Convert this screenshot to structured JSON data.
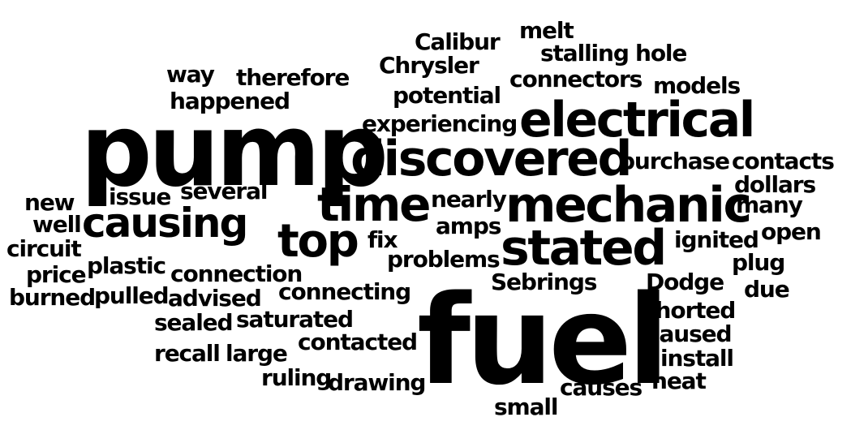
{
  "words": [
    "fuel",
    "pump",
    "electrical",
    "discovered",
    "mechanic",
    "stated",
    "time",
    "causing",
    "top",
    "purchase",
    "contacts",
    "Calibur",
    "Chrysler",
    "melt",
    "stalling",
    "hole",
    "connectors",
    "models",
    "potential",
    "experiencing",
    "way",
    "therefore",
    "happened",
    "dollars",
    "many",
    "open",
    "ignited",
    "plug",
    "due",
    "Dodge",
    "Sebrings",
    "shorted",
    "caused",
    "install",
    "heat",
    "causes",
    "small",
    "drawing",
    "ruling",
    "contacted",
    "recall",
    "large",
    "sealed",
    "saturated",
    "burned",
    "pulled",
    "advised",
    "connecting",
    "connection",
    "price",
    "plastic",
    "circuit",
    "well",
    "new",
    "issue",
    "several",
    "nearly",
    "amps",
    "fix",
    "problems"
  ],
  "colors": {
    "text": "#000000",
    "background": "#ffffff"
  }
}
